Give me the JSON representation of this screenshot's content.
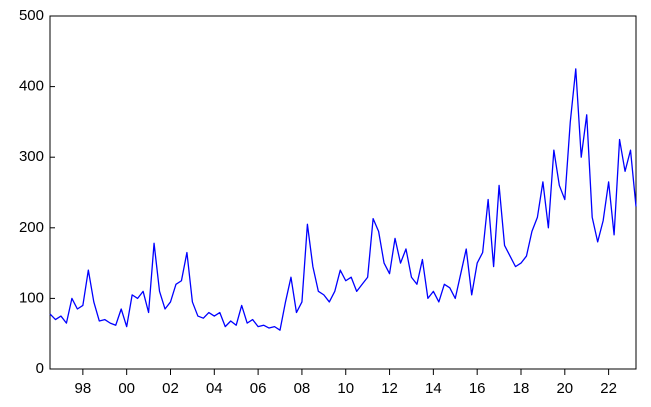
{
  "chart_data": {
    "type": "line",
    "color": "#0000ff",
    "x": [
      1997,
      1997.25,
      1997.5,
      1997.75,
      1998,
      1998.25,
      1998.5,
      1998.75,
      1999,
      1999.25,
      1999.5,
      1999.75,
      2000,
      2000.25,
      2000.5,
      2000.75,
      2001,
      2001.25,
      2001.5,
      2001.75,
      2002,
      2002.25,
      2002.5,
      2002.75,
      2003,
      2003.25,
      2003.5,
      2003.75,
      2004,
      2004.25,
      2004.5,
      2004.75,
      2005,
      2005.25,
      2005.5,
      2005.75,
      2006,
      2006.25,
      2006.5,
      2006.75,
      2007,
      2007.25,
      2007.5,
      2007.75,
      2008,
      2008.25,
      2008.5,
      2008.75,
      2009,
      2009.25,
      2009.5,
      2009.75,
      2010,
      2010.25,
      2010.5,
      2010.75,
      2011,
      2011.25,
      2011.5,
      2011.75,
      2012,
      2012.25,
      2012.5,
      2012.75,
      2013,
      2013.25,
      2013.5,
      2013.75,
      2014,
      2014.25,
      2014.5,
      2014.75,
      2015,
      2015.25,
      2015.5,
      2015.75,
      2016,
      2016.25,
      2016.5,
      2016.75,
      2017,
      2017.25,
      2017.5,
      2017.75,
      2018,
      2018.25,
      2018.5,
      2018.75,
      2019,
      2019.25,
      2019.5,
      2019.75,
      2020,
      2020.25,
      2020.5,
      2020.75,
      2021,
      2021.25,
      2021.5,
      2021.75,
      2022,
      2022.25,
      2022.5,
      2022.75,
      2023,
      2023.25,
      2023.5,
      2023.75
    ],
    "values": [
      78,
      70,
      75,
      65,
      100,
      85,
      90,
      140,
      95,
      68,
      70,
      65,
      62,
      85,
      60,
      105,
      100,
      110,
      80,
      178,
      110,
      85,
      95,
      120,
      125,
      165,
      95,
      75,
      72,
      80,
      75,
      80,
      60,
      68,
      62,
      90,
      65,
      70,
      60,
      62,
      58,
      60,
      55,
      95,
      130,
      80,
      95,
      205,
      145,
      110,
      105,
      95,
      110,
      140,
      125,
      130,
      110,
      120,
      130,
      213,
      195,
      150,
      135,
      185,
      150,
      170,
      130,
      120,
      155,
      100,
      110,
      95,
      120,
      115,
      100,
      135,
      170,
      105,
      150,
      165,
      240,
      145,
      260,
      175,
      160,
      145,
      150,
      160,
      195,
      215,
      265,
      200,
      310,
      260,
      240,
      350,
      425,
      300,
      360,
      215,
      180,
      210,
      265,
      190,
      325,
      280,
      310,
      230
    ],
    "xlim": [
      1997,
      2023.75
    ],
    "xticks": [
      {
        "value": 1998.5,
        "label": "98"
      },
      {
        "value": 2000.5,
        "label": "00"
      },
      {
        "value": 2002.5,
        "label": "02"
      },
      {
        "value": 2004.5,
        "label": "04"
      },
      {
        "value": 2006.5,
        "label": "06"
      },
      {
        "value": 2008.5,
        "label": "08"
      },
      {
        "value": 2010.5,
        "label": "10"
      },
      {
        "value": 2012.5,
        "label": "12"
      },
      {
        "value": 2014.5,
        "label": "14"
      },
      {
        "value": 2016.5,
        "label": "16"
      },
      {
        "value": 2018.5,
        "label": "18"
      },
      {
        "value": 2020.5,
        "label": "20"
      },
      {
        "value": 2022.5,
        "label": "22"
      }
    ],
    "ylim": [
      0,
      500
    ],
    "yticks": [
      0,
      100,
      200,
      300,
      400,
      500
    ]
  }
}
